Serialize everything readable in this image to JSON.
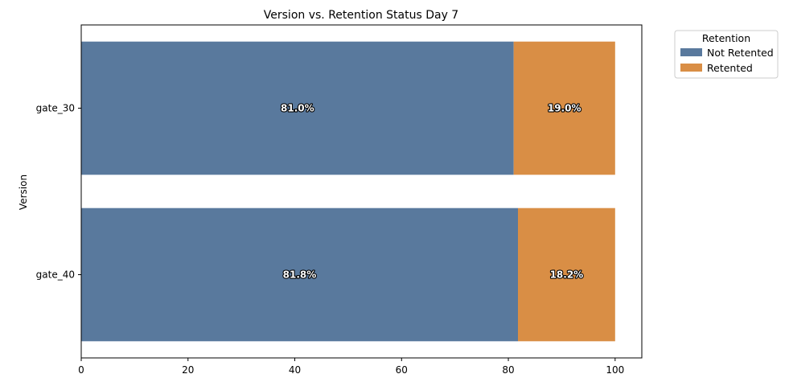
{
  "chart_data": {
    "type": "bar",
    "orientation": "horizontal",
    "stacked": true,
    "title": "Version vs. Retention Status Day 7",
    "xlabel": "",
    "ylabel": "Version",
    "categories": [
      "gate_30",
      "gate_40"
    ],
    "series": [
      {
        "name": "Not Retented",
        "values": [
          81.0,
          81.8
        ],
        "labels": [
          "81.0%",
          "81.8%"
        ],
        "color": "#59799d"
      },
      {
        "name": "Retented",
        "values": [
          19.0,
          18.2
        ],
        "labels": [
          "19.0%",
          "18.2%"
        ],
        "color": "#d98e45"
      }
    ],
    "xlim": [
      0,
      105
    ],
    "xticks": [
      "0",
      "20",
      "40",
      "60",
      "80",
      "100"
    ],
    "grid": false,
    "legend": {
      "title": "Retention",
      "placement": "outside-top-right"
    }
  }
}
